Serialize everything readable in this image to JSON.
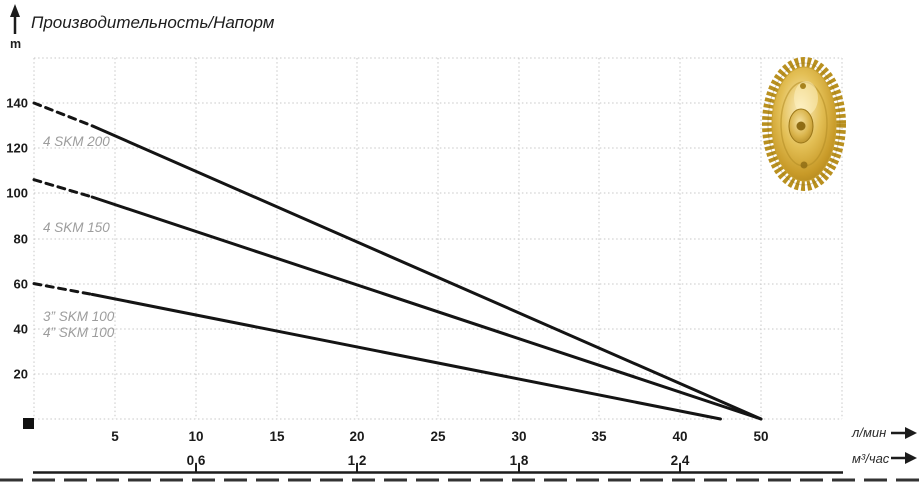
{
  "title": {
    "text": "Производительность/Напорм",
    "y_axis_unit": "m"
  },
  "axes": {
    "y_ticks": [
      "140",
      "120",
      "100",
      "80",
      "60",
      "40",
      "20"
    ],
    "x_ticks": [
      "5",
      "10",
      "15",
      "20",
      "25",
      "30",
      "35",
      "40",
      "50"
    ],
    "x_unit": "л/мин",
    "x2_ticks": [
      "0,6",
      "1,2",
      "1,8",
      "2,4"
    ],
    "x2_unit": "м³/час"
  },
  "curve_labels": [
    "4 SKM 200",
    "4 SKM 150",
    "3” SKM 100",
    "4” SKM 100"
  ],
  "icons": {
    "up_arrow": "up-arrow",
    "right_arrow_lmin": "right-arrow",
    "right_arrow_m3h": "right-arrow",
    "origin_marker": "black-square",
    "impeller": "brass-pump-impeller-photo"
  },
  "colors": {
    "curve": "#141414",
    "grid": "#c7c7c7",
    "curve_label": "#9d9d9d",
    "impeller_gold": "#d4ab3a"
  },
  "chart_data": {
    "type": "line",
    "title": "Производительность/Напорм",
    "ylabel": "m",
    "xlabel": "л/мин",
    "xlabel_secondary": "м³/час",
    "ylim": [
      0,
      160
    ],
    "y_ticks": [
      20,
      40,
      60,
      80,
      100,
      120,
      140
    ],
    "x_ticks_lmin": [
      5,
      10,
      15,
      20,
      25,
      30,
      35,
      40,
      50
    ],
    "x_ticks_m3h": [
      0.6,
      1.2,
      1.8,
      2.4
    ],
    "grid": "dotted",
    "axis_note": "x gridlines equally spaced; the '50' label sits at the 45 grid position (45 unlabeled)",
    "series": [
      {
        "name": "4 SKM 200",
        "style": "dashed-then-solid",
        "dash_until_x": 3.6,
        "start": [
          0,
          140
        ],
        "end": [
          50,
          0
        ]
      },
      {
        "name": "4 SKM 150",
        "style": "dashed-then-solid",
        "dash_until_x": 3.6,
        "start": [
          0,
          106
        ],
        "end": [
          50,
          0
        ]
      },
      {
        "name": "3”/4” SKM 100",
        "style": "dashed-then-solid",
        "dash_until_x": 3.6,
        "start": [
          0,
          60
        ],
        "end": [
          45,
          0
        ]
      }
    ]
  }
}
